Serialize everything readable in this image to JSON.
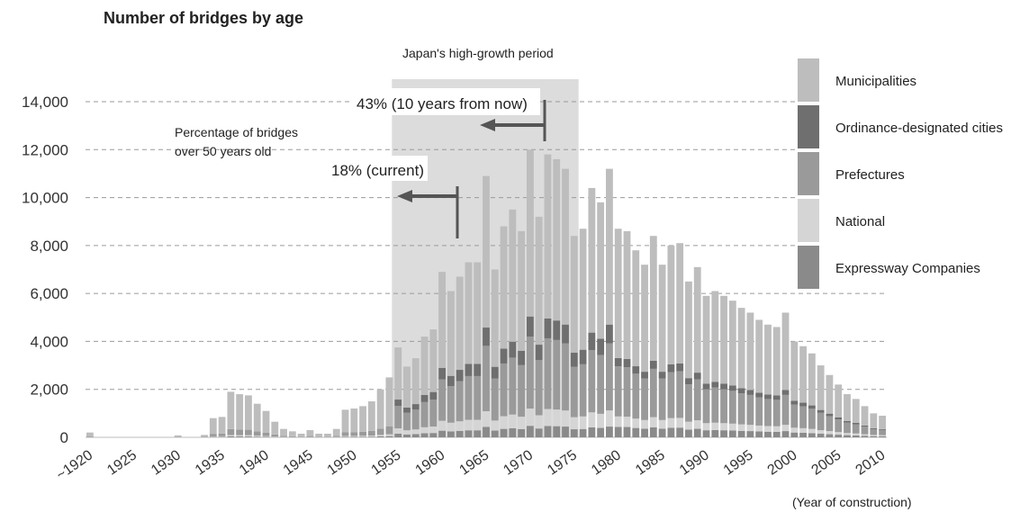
{
  "chart_data": {
    "type": "bar",
    "stacked": true,
    "title": "Number of bridges by age",
    "xlabel": "(Year of construction)",
    "ylabel": "",
    "ylim": [
      0,
      14000
    ],
    "yticks": [
      0,
      2000,
      4000,
      6000,
      8000,
      10000,
      12000,
      14000
    ],
    "ytick_labels": [
      "0",
      "2,000",
      "4,000",
      "6,000",
      "8,000",
      "10,000",
      "12,000",
      "14,000"
    ],
    "xtick_labels": [
      "~1920",
      "1925",
      "1930",
      "1935",
      "1940",
      "1945",
      "1950",
      "1955",
      "1960",
      "1965",
      "1970",
      "1975",
      "1980",
      "1985",
      "1990",
      "1995",
      "2000",
      "2005",
      "2010"
    ],
    "grid": true,
    "legend_position": "right",
    "categories": [
      "~1920",
      "1921",
      "1922",
      "1923",
      "1924",
      "1925",
      "1926",
      "1927",
      "1928",
      "1929",
      "1930",
      "1931",
      "1932",
      "1933",
      "1934",
      "1935",
      "1936",
      "1937",
      "1938",
      "1939",
      "1940",
      "1941",
      "1942",
      "1943",
      "1944",
      "1945",
      "1946",
      "1947",
      "1948",
      "1949",
      "1950",
      "1951",
      "1952",
      "1953",
      "1954",
      "1955",
      "1956",
      "1957",
      "1958",
      "1959",
      "1960",
      "1961",
      "1962",
      "1963",
      "1964",
      "1965",
      "1966",
      "1967",
      "1968",
      "1969",
      "1970",
      "1971",
      "1972",
      "1973",
      "1974",
      "1975",
      "1976",
      "1977",
      "1978",
      "1979",
      "1980",
      "1981",
      "1982",
      "1983",
      "1984",
      "1985",
      "1986",
      "1987",
      "1988",
      "1989",
      "1990",
      "1991",
      "1992",
      "1993",
      "1994",
      "1995",
      "1996",
      "1997",
      "1998",
      "1999",
      "2000",
      "2001",
      "2002",
      "2003",
      "2004",
      "2005",
      "2006",
      "2007",
      "2008",
      "2009",
      "2010"
    ],
    "totals": [
      200,
      0,
      0,
      0,
      0,
      0,
      0,
      0,
      0,
      0,
      80,
      0,
      0,
      100,
      800,
      850,
      1900,
      1800,
      1750,
      1400,
      1100,
      650,
      350,
      250,
      150,
      300,
      150,
      150,
      350,
      1150,
      1200,
      1300,
      1500,
      2000,
      2500,
      3750,
      2950,
      3300,
      4200,
      4500,
      6900,
      6100,
      6700,
      7300,
      7300,
      10900,
      7000,
      8800,
      9500,
      8600,
      12000,
      9200,
      11800,
      11600,
      11200,
      8400,
      8700,
      10400,
      9800,
      11200,
      8700,
      8600,
      7800,
      7200,
      8400,
      7200,
      8000,
      8100,
      6500,
      7100,
      5900,
      6100,
      5900,
      5700,
      5400,
      5200,
      4900,
      4700,
      4600,
      5200,
      4000,
      3800,
      3500,
      3000,
      2600,
      2200,
      1800,
      1600,
      1300,
      1000,
      900
    ],
    "series": [
      {
        "name": "Municipalities",
        "color": "#bdbdbd"
      },
      {
        "name": "Ordinance-designated cities",
        "color": "#6f6f6f"
      },
      {
        "name": "Prefectures",
        "color": "#9a9a9a"
      },
      {
        "name": "National",
        "color": "#d5d5d5"
      },
      {
        "name": "Expressway Companies",
        "color": "#8a8a8a"
      }
    ],
    "annotations": {
      "period_label": "Japan's high-growth period",
      "pct_label_line1": "Percentage of bridges",
      "pct_label_line2": "over 50 years old",
      "current_label": "18% (current)",
      "future_label": "43% (10 years from now)"
    }
  }
}
